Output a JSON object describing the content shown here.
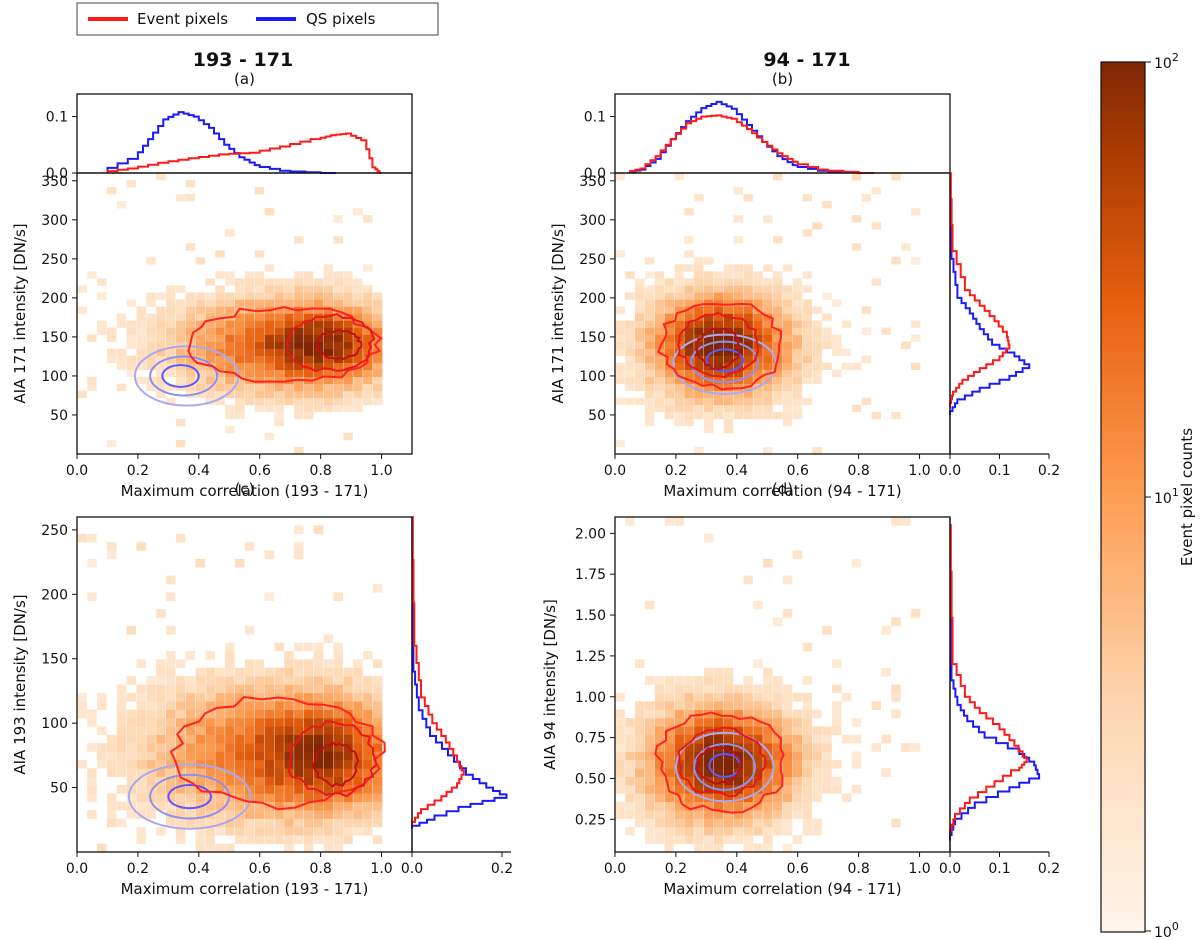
{
  "legend": {
    "event_label": "Event pixels",
    "qs_label": "QS pixels",
    "event_color": "#ff1a1a",
    "qs_color": "#1a1aff"
  },
  "columns": {
    "left_title": "193 - 171",
    "right_title": "94 - 171"
  },
  "colorbar": {
    "label": "Event pixel counts",
    "colormap": "Oranges (log)",
    "ticks": [
      {
        "base": "10",
        "exp": "2"
      },
      {
        "base": "10",
        "exp": "1"
      },
      {
        "base": "10",
        "exp": "0"
      }
    ],
    "range": [
      1,
      100
    ],
    "color_low": "#fff5eb",
    "color_high": "#7f2704"
  },
  "chart_data": [
    {
      "panel": "(a)",
      "type": "heatmap",
      "title": "193 - 171",
      "xlabel": "Maximum correlation (193 - 171)",
      "ylabel": "AIA 171 intensity [DN/s]",
      "xlim": [
        0.0,
        1.1
      ],
      "ylim": [
        0,
        360
      ],
      "xticks": [
        "0.0",
        "0.2",
        "0.4",
        "0.6",
        "0.8",
        "1.0"
      ],
      "yticks": [
        "50",
        "100",
        "150",
        "200",
        "250",
        "300",
        "350"
      ],
      "top_hist": {
        "yticks": [
          "0.0",
          "0.1"
        ],
        "ylim": [
          0,
          0.14
        ],
        "event_points": [
          [
            0.1,
            0.001
          ],
          [
            0.2,
            0.008
          ],
          [
            0.3,
            0.018
          ],
          [
            0.4,
            0.026
          ],
          [
            0.5,
            0.033
          ],
          [
            0.6,
            0.036
          ],
          [
            0.7,
            0.047
          ],
          [
            0.8,
            0.06
          ],
          [
            0.85,
            0.067
          ],
          [
            0.9,
            0.07
          ],
          [
            0.95,
            0.058
          ],
          [
            0.98,
            0.01
          ],
          [
            1.0,
            0.0
          ]
        ],
        "qs_points": [
          [
            0.1,
            0.001
          ],
          [
            0.2,
            0.025
          ],
          [
            0.25,
            0.06
          ],
          [
            0.3,
            0.095
          ],
          [
            0.35,
            0.108
          ],
          [
            0.4,
            0.1
          ],
          [
            0.45,
            0.08
          ],
          [
            0.5,
            0.05
          ],
          [
            0.55,
            0.028
          ],
          [
            0.6,
            0.014
          ],
          [
            0.7,
            0.004
          ],
          [
            0.85,
            0.0
          ]
        ]
      },
      "right_hist": null,
      "event_contours": [
        {
          "level": "outer",
          "center": [
            0.68,
            140
          ],
          "radii": [
            0.3,
            48
          ]
        },
        {
          "level": "mid",
          "center": [
            0.83,
            142
          ],
          "radii": [
            0.14,
            35
          ]
        },
        {
          "level": "inner",
          "center": [
            0.86,
            140
          ],
          "radii": [
            0.07,
            18
          ]
        }
      ],
      "qs_contours": [
        {
          "level": "outer",
          "center": [
            0.36,
            100
          ],
          "radii": [
            0.17,
            38
          ]
        },
        {
          "level": "mid",
          "center": [
            0.35,
            100
          ],
          "radii": [
            0.11,
            25
          ]
        },
        {
          "level": "inner",
          "center": [
            0.34,
            100
          ],
          "radii": [
            0.06,
            14
          ]
        }
      ]
    },
    {
      "panel": "(b)",
      "type": "heatmap",
      "title": "94 - 171",
      "xlabel": "Maximum correlation (94 - 171)",
      "ylabel": "AIA 171 intensity [DN/s]",
      "xlim": [
        0.0,
        1.1
      ],
      "ylim": [
        0,
        360
      ],
      "xticks": [
        "0.0",
        "0.2",
        "0.4",
        "0.6",
        "0.8",
        "1.0"
      ],
      "yticks": [
        "50",
        "100",
        "150",
        "200",
        "250",
        "300",
        "350"
      ],
      "top_hist": {
        "yticks": [
          "0.0",
          "0.1"
        ],
        "ylim": [
          0,
          0.14
        ],
        "event_points": [
          [
            0.05,
            0.001
          ],
          [
            0.1,
            0.008
          ],
          [
            0.15,
            0.03
          ],
          [
            0.2,
            0.06
          ],
          [
            0.25,
            0.088
          ],
          [
            0.3,
            0.1
          ],
          [
            0.35,
            0.102
          ],
          [
            0.4,
            0.096
          ],
          [
            0.45,
            0.078
          ],
          [
            0.5,
            0.055
          ],
          [
            0.55,
            0.035
          ],
          [
            0.6,
            0.02
          ],
          [
            0.7,
            0.006
          ],
          [
            0.85,
            0.0
          ]
        ],
        "qs_points": [
          [
            0.05,
            0.001
          ],
          [
            0.1,
            0.006
          ],
          [
            0.15,
            0.025
          ],
          [
            0.2,
            0.06
          ],
          [
            0.25,
            0.092
          ],
          [
            0.3,
            0.115
          ],
          [
            0.35,
            0.126
          ],
          [
            0.4,
            0.114
          ],
          [
            0.45,
            0.085
          ],
          [
            0.5,
            0.055
          ],
          [
            0.55,
            0.03
          ],
          [
            0.6,
            0.014
          ],
          [
            0.7,
            0.004
          ],
          [
            0.85,
            0.0
          ]
        ]
      },
      "right_hist": {
        "xticks": [
          "0.0",
          "0.1",
          "0.2"
        ],
        "xlim": [
          0,
          0.2
        ],
        "event_points": [
          [
            360,
            0.0
          ],
          [
            260,
            0.005
          ],
          [
            210,
            0.03
          ],
          [
            190,
            0.06
          ],
          [
            170,
            0.09
          ],
          [
            150,
            0.115
          ],
          [
            135,
            0.12
          ],
          [
            120,
            0.1
          ],
          [
            105,
            0.06
          ],
          [
            90,
            0.025
          ],
          [
            75,
            0.006
          ],
          [
            60,
            0.0
          ]
        ],
        "qs_points": [
          [
            360,
            0.0
          ],
          [
            250,
            0.003
          ],
          [
            200,
            0.015
          ],
          [
            180,
            0.04
          ],
          [
            160,
            0.06
          ],
          [
            140,
            0.085
          ],
          [
            125,
            0.13
          ],
          [
            110,
            0.16
          ],
          [
            95,
            0.12
          ],
          [
            80,
            0.06
          ],
          [
            65,
            0.015
          ],
          [
            50,
            0.0
          ]
        ]
      },
      "event_contours": [
        {
          "level": "outer",
          "center": [
            0.35,
            140
          ],
          "radii": [
            0.2,
            55
          ]
        },
        {
          "level": "mid",
          "center": [
            0.34,
            140
          ],
          "radii": [
            0.13,
            40
          ]
        },
        {
          "level": "inner",
          "center": [
            0.34,
            135
          ],
          "radii": [
            0.07,
            25
          ]
        }
      ],
      "qs_contours": [
        {
          "level": "outer",
          "center": [
            0.36,
            115
          ],
          "radii": [
            0.17,
            38
          ]
        },
        {
          "level": "mid",
          "center": [
            0.36,
            118
          ],
          "radii": [
            0.11,
            26
          ]
        },
        {
          "level": "inner",
          "center": [
            0.36,
            120
          ],
          "radii": [
            0.06,
            14
          ]
        }
      ]
    },
    {
      "panel": "(c)",
      "type": "heatmap",
      "title": "",
      "xlabel": "Maximum correlation (193 - 171)",
      "ylabel": "AIA 193 intensity [DN/s]",
      "xlim": [
        0.0,
        1.1
      ],
      "ylim": [
        0,
        260
      ],
      "xticks": [
        "0.0",
        "0.2",
        "0.4",
        "0.6",
        "0.8",
        "1.0"
      ],
      "yticks": [
        "50",
        "100",
        "150",
        "200",
        "250"
      ],
      "top_hist": null,
      "right_hist": {
        "xticks": [
          "0.0",
          "0.2"
        ],
        "xlim": [
          0,
          0.22
        ],
        "event_points": [
          [
            260,
            0.0
          ],
          [
            160,
            0.005
          ],
          [
            120,
            0.02
          ],
          [
            100,
            0.045
          ],
          [
            85,
            0.075
          ],
          [
            70,
            0.1
          ],
          [
            60,
            0.115
          ],
          [
            50,
            0.1
          ],
          [
            40,
            0.065
          ],
          [
            30,
            0.02
          ],
          [
            20,
            0.0
          ]
        ],
        "qs_points": [
          [
            260,
            0.0
          ],
          [
            140,
            0.003
          ],
          [
            110,
            0.015
          ],
          [
            90,
            0.04
          ],
          [
            75,
            0.08
          ],
          [
            60,
            0.12
          ],
          [
            50,
            0.165
          ],
          [
            42,
            0.21
          ],
          [
            35,
            0.13
          ],
          [
            25,
            0.05
          ],
          [
            18,
            0.0
          ]
        ]
      },
      "event_contours": [
        {
          "level": "outer",
          "center": [
            0.66,
            78
          ],
          "radii": [
            0.34,
            42
          ]
        },
        {
          "level": "mid",
          "center": [
            0.84,
            72
          ],
          "radii": [
            0.14,
            28
          ]
        },
        {
          "level": "inner",
          "center": [
            0.85,
            68
          ],
          "radii": [
            0.07,
            16
          ]
        }
      ],
      "qs_contours": [
        {
          "level": "outer",
          "center": [
            0.37,
            43
          ],
          "radii": [
            0.2,
            25
          ]
        },
        {
          "level": "mid",
          "center": [
            0.37,
            43
          ],
          "radii": [
            0.13,
            17
          ]
        },
        {
          "level": "inner",
          "center": [
            0.37,
            43
          ],
          "radii": [
            0.07,
            9
          ]
        }
      ]
    },
    {
      "panel": "(d)",
      "type": "heatmap",
      "title": "",
      "xlabel": "Maximum correlation (94 - 171)",
      "ylabel": "AIA 94 intensity [DN/s]",
      "xlim": [
        0.0,
        1.1
      ],
      "ylim": [
        0.05,
        2.1
      ],
      "xticks": [
        "0.0",
        "0.2",
        "0.4",
        "0.6",
        "0.8",
        "1.0"
      ],
      "yticks": [
        "0.25",
        "0.50",
        "0.75",
        "1.00",
        "1.25",
        "1.50",
        "1.75",
        "2.00"
      ],
      "top_hist": null,
      "right_hist": {
        "xticks": [
          "0.0",
          "0.1",
          "0.2"
        ],
        "xlim": [
          0,
          0.2
        ],
        "event_points": [
          [
            2.05,
            0.0
          ],
          [
            1.2,
            0.005
          ],
          [
            1.0,
            0.03
          ],
          [
            0.9,
            0.06
          ],
          [
            0.8,
            0.1
          ],
          [
            0.7,
            0.13
          ],
          [
            0.6,
            0.155
          ],
          [
            0.55,
            0.14
          ],
          [
            0.45,
            0.09
          ],
          [
            0.35,
            0.04
          ],
          [
            0.25,
            0.01
          ],
          [
            0.15,
            0.0
          ]
        ],
        "qs_points": [
          [
            2.05,
            0.0
          ],
          [
            1.1,
            0.003
          ],
          [
            0.95,
            0.015
          ],
          [
            0.85,
            0.035
          ],
          [
            0.75,
            0.07
          ],
          [
            0.65,
            0.14
          ],
          [
            0.58,
            0.17
          ],
          [
            0.5,
            0.18
          ],
          [
            0.42,
            0.12
          ],
          [
            0.32,
            0.05
          ],
          [
            0.22,
            0.01
          ],
          [
            0.12,
            0.0
          ]
        ]
      },
      "event_contours": [
        {
          "level": "outer",
          "center": [
            0.35,
            0.6
          ],
          "radii": [
            0.21,
            0.3
          ]
        },
        {
          "level": "mid",
          "center": [
            0.35,
            0.6
          ],
          "radii": [
            0.14,
            0.2
          ]
        },
        {
          "level": "inner",
          "center": [
            0.34,
            0.58
          ],
          "radii": [
            0.07,
            0.11
          ]
        }
      ],
      "qs_contours": [
        {
          "level": "outer",
          "center": [
            0.36,
            0.57
          ],
          "radii": [
            0.16,
            0.21
          ]
        },
        {
          "level": "mid",
          "center": [
            0.36,
            0.57
          ],
          "radii": [
            0.1,
            0.14
          ]
        },
        {
          "level": "inner",
          "center": [
            0.36,
            0.58
          ],
          "radii": [
            0.05,
            0.07
          ]
        }
      ]
    }
  ]
}
